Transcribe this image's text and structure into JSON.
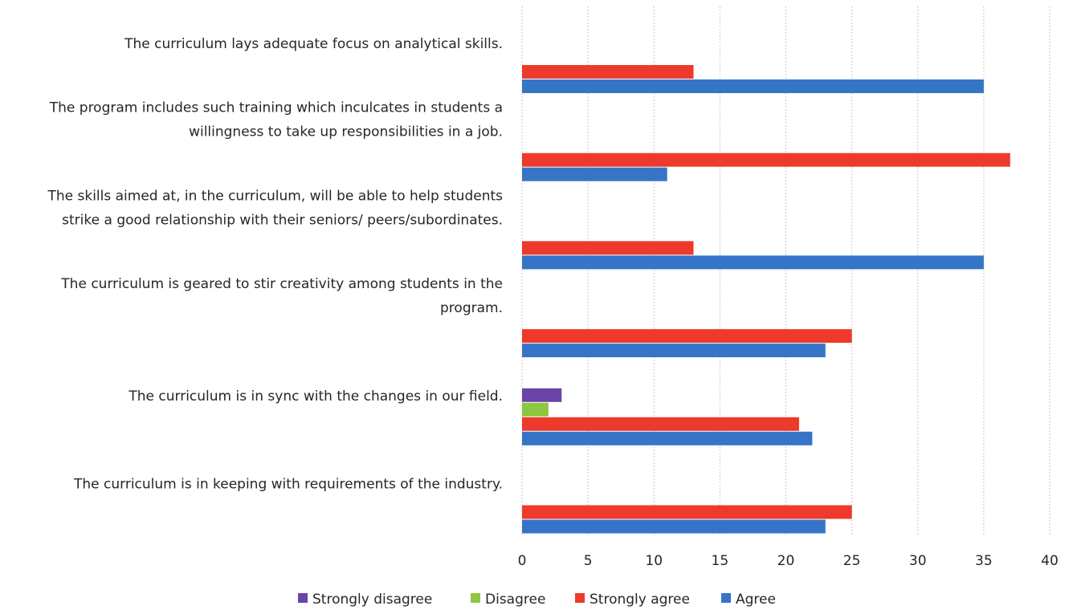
{
  "chart_data": {
    "type": "bar",
    "orientation": "horizontal",
    "categories": [
      [
        "The curriculum lays adequate focus on analytical skills."
      ],
      [
        "The program includes such training which inculcates in students a",
        "willingness to take up responsibilities in a job."
      ],
      [
        "The skills aimed at, in the curriculum, will be able to help students",
        "strike a good relationship with their seniors/ peers/subordinates."
      ],
      [
        "The curriculum is geared to stir creativity among students in the",
        "program."
      ],
      [
        "The curriculum is in sync with the changes in our field."
      ],
      [
        "The curriculum is in keeping with requirements of the industry."
      ]
    ],
    "series": [
      {
        "name": "Strongly disagree",
        "color": "#6a44a8",
        "values": [
          0,
          0,
          0,
          0,
          3,
          0
        ]
      },
      {
        "name": "Disagree",
        "color": "#8dc63f",
        "values": [
          0,
          0,
          0,
          0,
          2,
          0
        ]
      },
      {
        "name": "Strongly agree",
        "color": "#ee3a2c",
        "values": [
          13,
          37,
          13,
          25,
          21,
          25
        ]
      },
      {
        "name": "Agree",
        "color": "#3674c8",
        "values": [
          35,
          11,
          35,
          23,
          22,
          23
        ]
      }
    ],
    "xlim": [
      0,
      40
    ],
    "xticks": [
      0,
      5,
      10,
      15,
      20,
      25,
      30,
      35,
      40
    ],
    "grid": "vertical",
    "legend": "bottom"
  }
}
